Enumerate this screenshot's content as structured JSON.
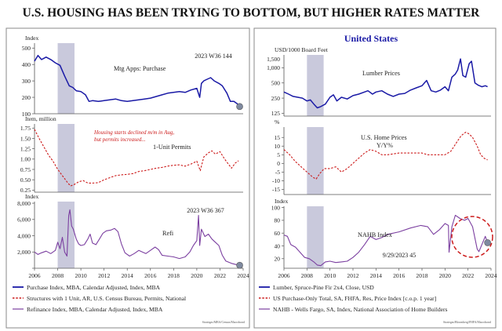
{
  "title": "U.S. HOUSING HAS BEEN TRYING TO BOTTOM, BUT HIGHER RATES MATTER",
  "right_panel_title": "United States",
  "colors": {
    "blue": "#1a1aa6",
    "red": "#cc1a1a",
    "purple": "#7b3fa0",
    "shade": "#c9c9dc",
    "marker": "#7f8aa0",
    "frame": "#9a9a9a"
  },
  "left": {
    "x_ticks": [
      "2006",
      "2008",
      "2010",
      "2012",
      "2014",
      "2016",
      "2018",
      "2020",
      "2022",
      "2024"
    ],
    "legend": [
      "Purchase Index, MBA, Calendar Adjusted, Index, MBA",
      "Structures with 1 Unit, AR, U.S. Census Bureau, Permits, National",
      "Refinance Index, MBA, Calendar Adjusted, Index, MBA"
    ],
    "source": "Strategas/MBA/Census/Macrobond"
  },
  "right": {
    "x_ticks": [
      "2006",
      "2008",
      "2010",
      "2012",
      "2014",
      "2016",
      "2018",
      "2020",
      "2022",
      "2024"
    ],
    "legend": [
      "Lumber, Spruce-Pine Fir 2x4, Close, USD",
      "US Purchase-Only Total, SA, FHFA, Res, Price Index [c.o.p. 1 year]",
      "NAHB - Wells Fargo, SA, Index, National Association of Home Builders"
    ],
    "source": "Strategas/Bloomberg/FHFA/Macrobond"
  },
  "chart_data": [
    {
      "type": "line",
      "id": "purchase",
      "panel": "left",
      "ylabel": "Index",
      "label": "Mtg Apps: Purchase",
      "annotation": "2023 W36 144",
      "color": "blue",
      "ylim": [
        100,
        530
      ],
      "yticks": [
        100,
        200,
        300,
        400,
        500
      ],
      "ytick_labels": [
        "100",
        "200",
        "300",
        "400",
        "500"
      ],
      "recession": [
        2008.0,
        2009.45
      ],
      "x": [
        2006.0,
        2006.3,
        2006.6,
        2007.0,
        2007.4,
        2007.8,
        2008.2,
        2008.6,
        2009.0,
        2009.3,
        2009.6,
        2010.0,
        2010.4,
        2010.7,
        2011.0,
        2011.5,
        2012.0,
        2012.5,
        2013.0,
        2013.5,
        2014.0,
        2014.5,
        2015.0,
        2015.5,
        2016.0,
        2016.5,
        2017.0,
        2017.5,
        2018.0,
        2018.5,
        2019.0,
        2019.5,
        2020.0,
        2020.25,
        2020.4,
        2020.6,
        2020.9,
        2021.2,
        2021.5,
        2021.9,
        2022.2,
        2022.6,
        2022.9,
        2023.2,
        2023.5,
        2023.7
      ],
      "y": [
        420,
        455,
        430,
        445,
        430,
        410,
        395,
        330,
        270,
        260,
        240,
        235,
        215,
        175,
        180,
        175,
        180,
        185,
        190,
        180,
        175,
        180,
        185,
        190,
        195,
        205,
        215,
        225,
        230,
        235,
        230,
        245,
        255,
        200,
        285,
        300,
        310,
        320,
        300,
        285,
        270,
        225,
        175,
        175,
        160,
        144
      ]
    },
    {
      "type": "line",
      "id": "permits",
      "panel": "left",
      "ylabel": "Item, million",
      "label": "1-Unit Permits",
      "annotation": "Housing starts declined m/m in Aug, but permits increased...",
      "color": "red",
      "ylim": [
        0.2,
        1.85
      ],
      "yticks": [
        0.25,
        0.5,
        0.75,
        1.0,
        1.25,
        1.5,
        1.75
      ],
      "ytick_labels": [
        "0.25",
        "0.50",
        "0.75",
        "1.00",
        "1.25",
        "1.50",
        "1.75"
      ],
      "recession": [
        2008.0,
        2009.45
      ],
      "x": [
        2006.0,
        2006.4,
        2006.8,
        2007.2,
        2007.6,
        2008.0,
        2008.4,
        2008.8,
        2009.1,
        2009.4,
        2009.8,
        2010.2,
        2010.6,
        2011.0,
        2011.5,
        2012.0,
        2012.5,
        2013.0,
        2013.5,
        2014.0,
        2014.5,
        2015.0,
        2015.5,
        2016.0,
        2016.5,
        2017.0,
        2017.5,
        2018.0,
        2018.5,
        2019.0,
        2019.5,
        2020.0,
        2020.3,
        2020.6,
        2021.0,
        2021.3,
        2021.6,
        2022.0,
        2022.4,
        2022.8,
        2023.0,
        2023.3,
        2023.6
      ],
      "y": [
        1.72,
        1.5,
        1.3,
        1.1,
        0.95,
        0.75,
        0.6,
        0.45,
        0.35,
        0.38,
        0.45,
        0.48,
        0.42,
        0.42,
        0.43,
        0.5,
        0.55,
        0.6,
        0.62,
        0.63,
        0.65,
        0.7,
        0.72,
        0.75,
        0.78,
        0.8,
        0.83,
        0.85,
        0.86,
        0.83,
        0.88,
        0.95,
        0.72,
        1.05,
        1.15,
        1.2,
        1.12,
        1.18,
        1.0,
        0.85,
        0.78,
        0.9,
        0.96
      ]
    },
    {
      "type": "line",
      "id": "refi",
      "panel": "left",
      "ylabel": "Index",
      "label": "Refi",
      "annotation": "2023 W36 367",
      "color": "purple",
      "ylim": [
        0,
        8200
      ],
      "yticks": [
        0,
        2000,
        4000,
        6000,
        8000
      ],
      "ytick_labels": [
        "",
        "2,000",
        "4,000",
        "6,000",
        "8,000"
      ],
      "recession": [
        2008.0,
        2009.45
      ],
      "x": [
        2006.0,
        2006.3,
        2006.6,
        2007.0,
        2007.4,
        2007.8,
        2008.0,
        2008.2,
        2008.4,
        2008.6,
        2008.8,
        2008.95,
        2009.05,
        2009.2,
        2009.35,
        2009.6,
        2009.8,
        2010.0,
        2010.3,
        2010.6,
        2010.8,
        2011.0,
        2011.3,
        2011.6,
        2011.9,
        2012.2,
        2012.6,
        2012.9,
        2013.2,
        2013.5,
        2013.8,
        2014.2,
        2014.6,
        2015.0,
        2015.3,
        2015.6,
        2016.0,
        2016.4,
        2016.7,
        2017.0,
        2017.5,
        2018.0,
        2018.5,
        2019.0,
        2019.4,
        2019.7,
        2020.0,
        2020.15,
        2020.25,
        2020.4,
        2020.7,
        2021.0,
        2021.3,
        2021.6,
        2021.9,
        2022.2,
        2022.5,
        2023.0,
        2023.4,
        2023.7
      ],
      "y": [
        2000,
        1700,
        1900,
        2100,
        1800,
        2200,
        3200,
        2400,
        3800,
        2000,
        1500,
        6500,
        7200,
        5200,
        4800,
        3600,
        3000,
        2800,
        2900,
        3600,
        4200,
        3100,
        2900,
        3600,
        4300,
        4600,
        4700,
        4900,
        4500,
        3000,
        1900,
        1500,
        1800,
        2200,
        2000,
        1800,
        2200,
        2600,
        2300,
        1600,
        1500,
        1400,
        1200,
        1400,
        2000,
        2800,
        3400,
        6500,
        2800,
        4800,
        3900,
        4200,
        3600,
        3200,
        2800,
        1600,
        900,
        600,
        450,
        367
      ]
    },
    {
      "type": "line",
      "id": "lumber",
      "panel": "right",
      "ylabel": "USD/1000 Board Feet",
      "label": "Lumber Prices",
      "color": "blue",
      "scale": "log",
      "ylim": [
        110,
        1800
      ],
      "yticks": [
        125,
        250,
        500,
        1000
      ],
      "ytick_labels": [
        "125",
        "250",
        "500",
        "1,000"
      ],
      "extra_ytick_labels": [
        {
          "value": 1500,
          "label": "1,500"
        }
      ],
      "recession": [
        2008.0,
        2009.45
      ],
      "x": [
        2006.0,
        2006.4,
        2006.8,
        2007.2,
        2007.6,
        2008.0,
        2008.3,
        2008.6,
        2008.9,
        2009.2,
        2009.6,
        2010.0,
        2010.3,
        2010.6,
        2011.0,
        2011.5,
        2012.0,
        2012.5,
        2013.0,
        2013.3,
        2013.7,
        2014.0,
        2014.5,
        2015.0,
        2015.5,
        2016.0,
        2016.5,
        2017.0,
        2017.5,
        2018.0,
        2018.4,
        2018.8,
        2019.2,
        2019.6,
        2020.0,
        2020.3,
        2020.6,
        2020.9,
        2021.1,
        2021.35,
        2021.55,
        2021.8,
        2022.1,
        2022.3,
        2022.6,
        2022.9,
        2023.2,
        2023.5,
        2023.7
      ],
      "y": [
        330,
        300,
        270,
        260,
        250,
        220,
        230,
        190,
        160,
        170,
        190,
        260,
        290,
        220,
        260,
        240,
        280,
        300,
        330,
        350,
        300,
        330,
        350,
        300,
        270,
        300,
        310,
        360,
        400,
        440,
        560,
        350,
        330,
        360,
        420,
        350,
        650,
        750,
        900,
        1500,
        700,
        650,
        1200,
        1350,
        500,
        450,
        420,
        440,
        420
      ]
    },
    {
      "type": "line",
      "id": "home_prices",
      "panel": "right",
      "ylabel": "%",
      "label": "U.S. Home Prices Y/Y%",
      "color": "red",
      "dashed": true,
      "ylim": [
        -18,
        21
      ],
      "yticks": [
        -15,
        -10,
        -5,
        0,
        5,
        10,
        15
      ],
      "ytick_labels": [
        "-15",
        "-10",
        "-5",
        "0",
        "5",
        "10",
        "15"
      ],
      "recession": [
        2008.0,
        2009.45
      ],
      "x": [
        2006.0,
        2006.5,
        2007.0,
        2007.5,
        2008.0,
        2008.5,
        2008.8,
        2009.1,
        2009.5,
        2010.0,
        2010.5,
        2011.0,
        2011.5,
        2012.0,
        2012.5,
        2013.0,
        2013.5,
        2014.0,
        2014.5,
        2015.0,
        2016.0,
        2017.0,
        2018.0,
        2018.5,
        2019.0,
        2019.5,
        2020.0,
        2020.5,
        2021.0,
        2021.4,
        2021.8,
        2022.1,
        2022.4,
        2022.8,
        2023.1,
        2023.4,
        2023.7
      ],
      "y": [
        8,
        5,
        1,
        -2,
        -5,
        -8,
        -9,
        -6,
        -3,
        -3,
        -2,
        -5,
        -3,
        0,
        3,
        6,
        8,
        7,
        5,
        5,
        6,
        6,
        6,
        5,
        5,
        5,
        5,
        7,
        12,
        16,
        18,
        17,
        15,
        10,
        5,
        3,
        2
      ]
    },
    {
      "type": "line",
      "id": "nahb",
      "panel": "right",
      "ylabel": "Index",
      "label": "NAHB Index",
      "annotation": "9/29/2023 45",
      "color": "purple",
      "ylim": [
        5,
        102
      ],
      "yticks": [
        20,
        40,
        60,
        80,
        100
      ],
      "ytick_labels": [
        "20",
        "40",
        "60",
        "80",
        "100"
      ],
      "recession": [
        2008.0,
        2009.45
      ],
      "x": [
        2006.0,
        2006.3,
        2006.6,
        2007.0,
        2007.4,
        2007.8,
        2008.2,
        2008.6,
        2008.9,
        2009.2,
        2009.6,
        2010.0,
        2010.5,
        2011.0,
        2011.5,
        2012.0,
        2012.5,
        2013.0,
        2013.5,
        2014.0,
        2014.5,
        2015.0,
        2016.0,
        2017.0,
        2017.9,
        2018.5,
        2019.0,
        2019.5,
        2020.0,
        2020.3,
        2020.35,
        2020.6,
        2020.9,
        2021.3,
        2021.7,
        2022.0,
        2022.4,
        2022.8,
        2022.95,
        2023.2,
        2023.5,
        2023.7
      ],
      "y": [
        57,
        55,
        42,
        38,
        30,
        22,
        20,
        15,
        10,
        9,
        15,
        16,
        14,
        15,
        16,
        22,
        30,
        42,
        55,
        50,
        53,
        58,
        62,
        68,
        72,
        70,
        58,
        65,
        75,
        72,
        30,
        70,
        88,
        83,
        80,
        83,
        70,
        35,
        31,
        42,
        55,
        45
      ]
    }
  ]
}
